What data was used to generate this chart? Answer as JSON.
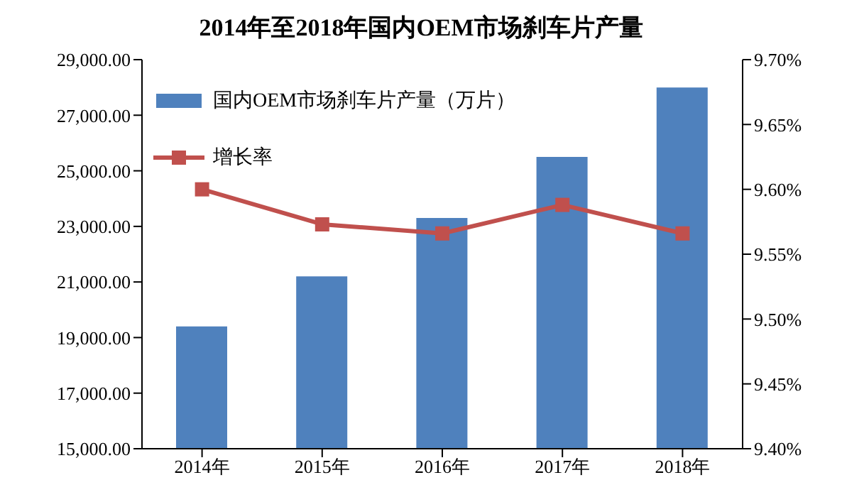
{
  "chart_data": {
    "type": "bar",
    "title": "2014年至2018年国内OEM市场刹车片产量",
    "categories": [
      "2014年",
      "2015年",
      "2016年",
      "2017年",
      "2018年"
    ],
    "series": [
      {
        "name": "国内OEM市场刹车片产量（万片）",
        "color": "#4f81bd",
        "values": [
          19400,
          21200,
          23300,
          25500,
          28000
        ]
      },
      {
        "name": "增长率",
        "type": "line",
        "axis": "y2",
        "color": "#c0504d",
        "marker": "square",
        "values": [
          9.6,
          9.573,
          9.566,
          9.588,
          9.566
        ]
      }
    ],
    "ylim": [
      15000,
      29000
    ],
    "yticks": [
      {
        "value": 15000,
        "label": "15,000.00"
      },
      {
        "value": 17000,
        "label": "17,000.00"
      },
      {
        "value": 19000,
        "label": "19,000.00"
      },
      {
        "value": 21000,
        "label": "21,000.00"
      },
      {
        "value": 23000,
        "label": "23,000.00"
      },
      {
        "value": 25000,
        "label": "25,000.00"
      },
      {
        "value": 27000,
        "label": "27,000.00"
      },
      {
        "value": 29000,
        "label": "29,000.00"
      }
    ],
    "y2lim": [
      9.4,
      9.7
    ],
    "y2ticks": [
      {
        "value": 9.4,
        "label": "9.40%"
      },
      {
        "value": 9.45,
        "label": "9.45%"
      },
      {
        "value": 9.5,
        "label": "9.50%"
      },
      {
        "value": 9.55,
        "label": "9.55%"
      },
      {
        "value": 9.6,
        "label": "9.60%"
      },
      {
        "value": 9.65,
        "label": "9.65%"
      },
      {
        "value": 9.7,
        "label": "9.70%"
      }
    ],
    "legend": "top left",
    "grid": false
  }
}
